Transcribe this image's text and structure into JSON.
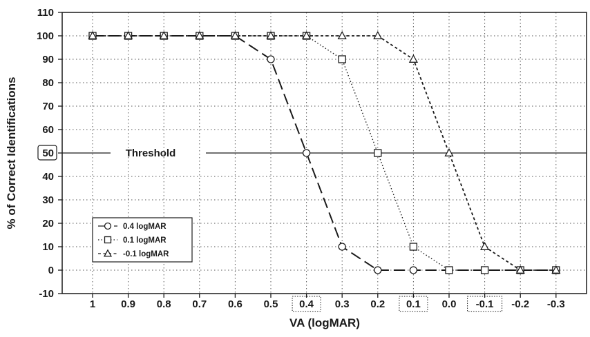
{
  "chart_data": {
    "type": "line",
    "xlabel": "VA (logMAR)",
    "ylabel": "% of Correct Identifications",
    "x": [
      1,
      0.9,
      0.8,
      0.7,
      0.6,
      0.5,
      0.4,
      0.3,
      0.2,
      0.1,
      0.0,
      -0.1,
      -0.2,
      -0.3
    ],
    "x_tick_labels": [
      "1",
      "0.9",
      "0.8",
      "0.7",
      "0.6",
      "0.5",
      "0.4",
      "0.3",
      "0.2",
      "0.1",
      "0.0",
      "-0.1",
      "-0.2",
      "-0.3"
    ],
    "y_tick_labels": [
      "-10",
      "0",
      "10",
      "20",
      "30",
      "40",
      "50",
      "60",
      "70",
      "80",
      "90",
      "100",
      "110"
    ],
    "ylim": [
      -10,
      110
    ],
    "xlim": [
      1.2,
      -0.35
    ],
    "grid": true,
    "legend_position": "bottom-left",
    "series": [
      {
        "name": "0.4 logMAR",
        "marker": "circle",
        "line_style": "long-dash",
        "values": [
          100,
          100,
          100,
          100,
          100,
          90,
          50,
          10,
          0,
          0,
          0,
          0,
          0,
          0
        ]
      },
      {
        "name": "0.1 logMAR",
        "marker": "square",
        "line_style": "dotted",
        "values": [
          100,
          100,
          100,
          100,
          100,
          100,
          100,
          90,
          50,
          10,
          0,
          0,
          0,
          0
        ]
      },
      {
        "name": "-0.1 logMAR",
        "marker": "triangle",
        "line_style": "short-dash",
        "values": [
          100,
          100,
          100,
          100,
          100,
          100,
          100,
          100,
          100,
          90,
          50,
          10,
          0,
          0
        ]
      }
    ],
    "threshold": {
      "value": 50,
      "label": "Threshold"
    },
    "boxed_x_labels": [
      "0.4",
      "0.1",
      "-0.1"
    ],
    "boxed_y_labels": [
      "50"
    ],
    "colors": {
      "ink": "#1a1a1a",
      "grid": "#555555",
      "background": "#ffffff"
    }
  }
}
